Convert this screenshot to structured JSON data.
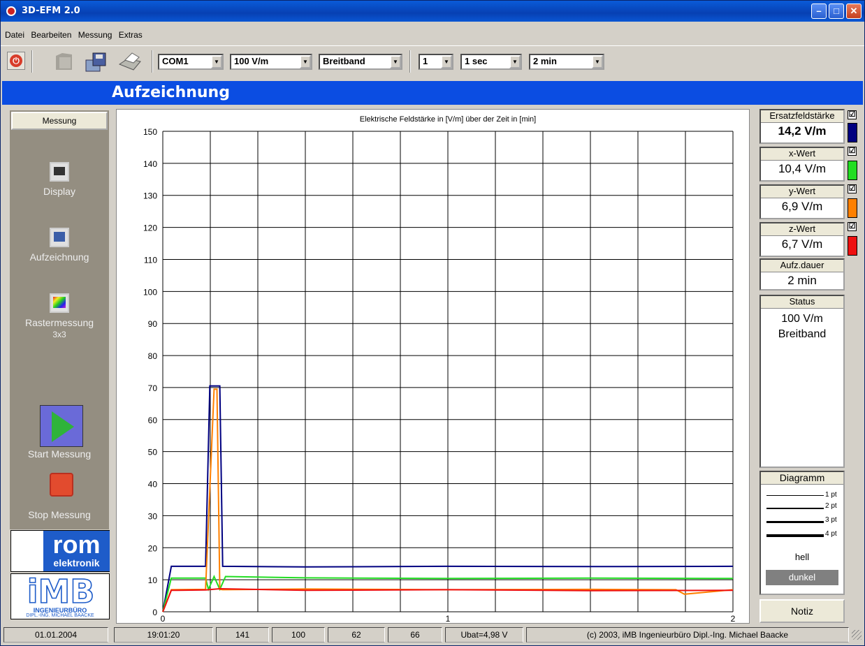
{
  "window": {
    "title": "3D-EFM 2.0"
  },
  "menu": [
    "Datei",
    "Bearbeiten",
    "Messung",
    "Extras"
  ],
  "toolbar": {
    "port": "COM1",
    "range": "100 V/m",
    "band": "Breitband",
    "channel": "1",
    "interval": "1 sec",
    "duration": "2 min"
  },
  "header": {
    "title": "Aufzeichnung"
  },
  "left": {
    "heading": "Messung",
    "display": "Display",
    "record": "Aufzeichnung",
    "grid_line1": "Rastermessung",
    "grid_line2": "3x3",
    "start": "Start Messung",
    "stop": "Stop Messung",
    "logo_rom_top": "rom",
    "logo_rom_bottom": "elektronik",
    "logo_imb_big": "iMB",
    "logo_imb_line1": "INGENIEURBÜRO",
    "logo_imb_line2": "DIPL.-ING. MICHAEL BAACKE"
  },
  "right": {
    "total_label": "Ersatzfeldstärke",
    "total_value": "14,2 V/m",
    "x_label": "x-Wert",
    "x_value": "10,4 V/m",
    "y_label": "y-Wert",
    "y_value": "6,9 V/m",
    "z_label": "z-Wert",
    "z_value": "6,7 V/m",
    "dur_label": "Aufz.dauer",
    "dur_value": "2 min",
    "status_label": "Status",
    "status_line1": "100 V/m",
    "status_line2": "Breitband",
    "diag_label": "Diagramm",
    "pt1": "1 pt",
    "pt2": "2 pt",
    "pt3": "3 pt",
    "pt4": "4 pt",
    "hell": "hell",
    "dunkel": "dunkel",
    "notiz": "Notiz",
    "check": "☑"
  },
  "statusbar": {
    "date": "01.01.2004",
    "time": "19:01:20",
    "v1": "141",
    "v2": "100",
    "v3": "62",
    "v4": "66",
    "ubat": "Ubat=4,98 V",
    "copyright": "(c) 2003,  iMB  Ingenieurbüro Dipl.-Ing. Michael Baacke"
  },
  "colors": {
    "total": "#000080",
    "x": "#22dd22",
    "y": "#ff8000",
    "z": "#ee1010"
  },
  "chart_data": {
    "type": "line",
    "title": "Elektrische Feldstärke in [V/m] über der Zeit in [min]",
    "xlim": [
      0,
      2
    ],
    "ylim": [
      0,
      150
    ],
    "xticks": [
      0,
      1,
      2
    ],
    "yticks": [
      0,
      10,
      20,
      30,
      40,
      50,
      60,
      70,
      80,
      90,
      100,
      110,
      120,
      130,
      140,
      150
    ],
    "grid": true,
    "series": [
      {
        "key": "total",
        "x": [
          0,
          0.03,
          0.15,
          0.165,
          0.2,
          0.21,
          0.5,
          1.0,
          1.5,
          2.0
        ],
        "y": [
          0,
          14.2,
          14.2,
          70.5,
          70.5,
          14.2,
          14.0,
          14.2,
          14.1,
          14.2
        ]
      },
      {
        "key": "x",
        "x": [
          0,
          0.03,
          0.15,
          0.16,
          0.18,
          0.2,
          0.22,
          0.5,
          1.0,
          1.5,
          2.0
        ],
        "y": [
          0,
          10.5,
          10.5,
          7,
          11,
          7,
          11,
          10.6,
          10.4,
          10.5,
          10.4
        ]
      },
      {
        "key": "y",
        "x": [
          0,
          0.03,
          0.15,
          0.18,
          0.19,
          0.2,
          0.21,
          0.5,
          1.0,
          1.5,
          1.8,
          1.83,
          2.0
        ],
        "y": [
          0,
          6.9,
          7,
          69.5,
          69.5,
          7,
          6.9,
          7.1,
          6.9,
          7.0,
          6.9,
          5.5,
          6.9
        ]
      },
      {
        "key": "z",
        "x": [
          0,
          0.03,
          0.15,
          0.2,
          0.5,
          1.0,
          1.5,
          2.0
        ],
        "y": [
          0,
          6.7,
          6.8,
          7.2,
          6.7,
          6.9,
          6.6,
          6.7
        ]
      }
    ]
  }
}
